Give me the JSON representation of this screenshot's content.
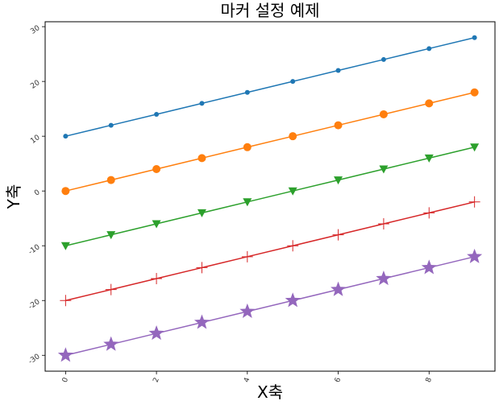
{
  "chart_data": {
    "type": "line",
    "title": "마커 설정 예제",
    "xlabel": "X축",
    "ylabel": "Y축",
    "xlim": [
      -0.45,
      9.45
    ],
    "ylim": [
      -32.9,
      30.9
    ],
    "xticks": [
      0,
      2,
      4,
      6,
      8
    ],
    "yticks": [
      -30,
      -20,
      -10,
      0,
      10,
      20,
      30
    ],
    "xtick_labels": [
      "0",
      "2",
      "4",
      "6",
      "8"
    ],
    "ytick_labels": [
      "-30",
      "-20",
      "-10",
      "0",
      "10",
      "20",
      "30"
    ],
    "grid": false,
    "x": [
      0,
      1,
      2,
      3,
      4,
      5,
      6,
      7,
      8,
      9
    ],
    "series": [
      {
        "marker": "point",
        "color": "#1f77b4",
        "values": [
          10,
          12,
          14,
          16,
          18,
          20,
          22,
          24,
          26,
          28
        ]
      },
      {
        "marker": "circle",
        "color": "#ff7f0e",
        "values": [
          0,
          2,
          4,
          6,
          8,
          10,
          12,
          14,
          16,
          18
        ]
      },
      {
        "marker": "triangle-down",
        "color": "#2ca02c",
        "values": [
          -10,
          -8,
          -6,
          -4,
          -2,
          0,
          2,
          4,
          6,
          8
        ]
      },
      {
        "marker": "plus",
        "color": "#d62728",
        "values": [
          -20,
          -18,
          -16,
          -14,
          -12,
          -10,
          -8,
          -6,
          -4,
          -2
        ]
      },
      {
        "marker": "star",
        "color": "#9467bd",
        "values": [
          -30,
          -28,
          -26,
          -24,
          -22,
          -20,
          -18,
          -16,
          -14,
          -12
        ]
      }
    ]
  }
}
